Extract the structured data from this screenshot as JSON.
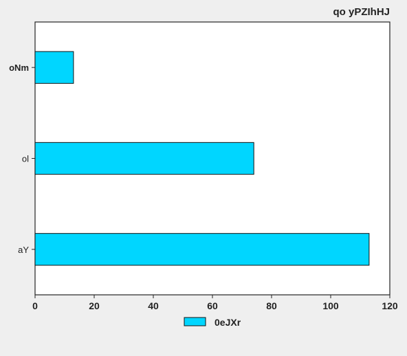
{
  "chart_data": {
    "type": "bar",
    "orientation": "horizontal",
    "title": "qo yPZIhHJ",
    "categories": [
      "oNm",
      "ol",
      "aY"
    ],
    "series": [
      {
        "name": "0eJXr",
        "values": [
          13,
          74,
          113
        ]
      }
    ],
    "xlim": [
      0,
      120
    ],
    "xticks": [
      0,
      20,
      40,
      60,
      80,
      100,
      120
    ],
    "xlabel": "",
    "ylabel": "",
    "grid": false,
    "legend_position": "bottom-center",
    "colors": {
      "bar_fill": "#00d6ff",
      "bar_stroke": "#111111",
      "plot_background": "#ffffff",
      "page_background": "#efefef"
    }
  }
}
